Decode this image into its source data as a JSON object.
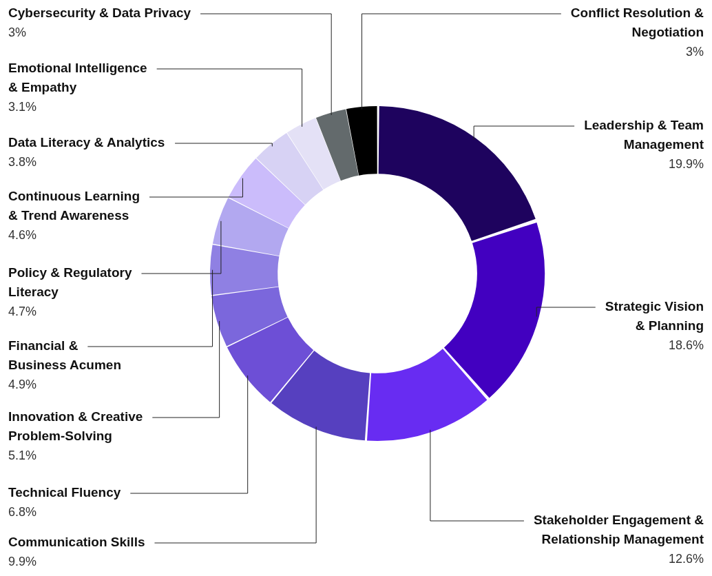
{
  "chart_data": {
    "type": "donut",
    "categories": [
      "Leadership & Team Management",
      "Strategic Vision & Planning",
      "Stakeholder Engagement & Relationship Management",
      "Communication Skills",
      "Technical Fluency",
      "Innovation & Creative Problem-Solving",
      "Financial & Business Acumen",
      "Policy & Regulatory Literacy",
      "Continuous Learning & Trend Awareness",
      "Data Literacy & Analytics",
      "Emotional Intelligence & Empathy",
      "Cybersecurity & Data Privacy",
      "Conflict Resolution & Negotiation"
    ],
    "values": [
      19.9,
      18.6,
      12.6,
      9.9,
      6.8,
      5.1,
      4.9,
      4.7,
      4.6,
      3.8,
      3.1,
      3,
      3
    ],
    "value_labels": [
      "19.9%",
      "18.6%",
      "12.6%",
      "9.9%",
      "6.8%",
      "5.1%",
      "4.9%",
      "4.7%",
      "4.6%",
      "3.8%",
      "3.1%",
      "3%",
      "3%"
    ],
    "colors": [
      "#1e035e",
      "#4200c0",
      "#682cf2",
      "#5640bf",
      "#6d4fd6",
      "#7b67dc",
      "#8f80e3",
      "#b2a8f0",
      "#cbbcfb",
      "#d7d2f4",
      "#e4e1f6",
      "#636a6c",
      "#000000"
    ],
    "legend": false
  }
}
